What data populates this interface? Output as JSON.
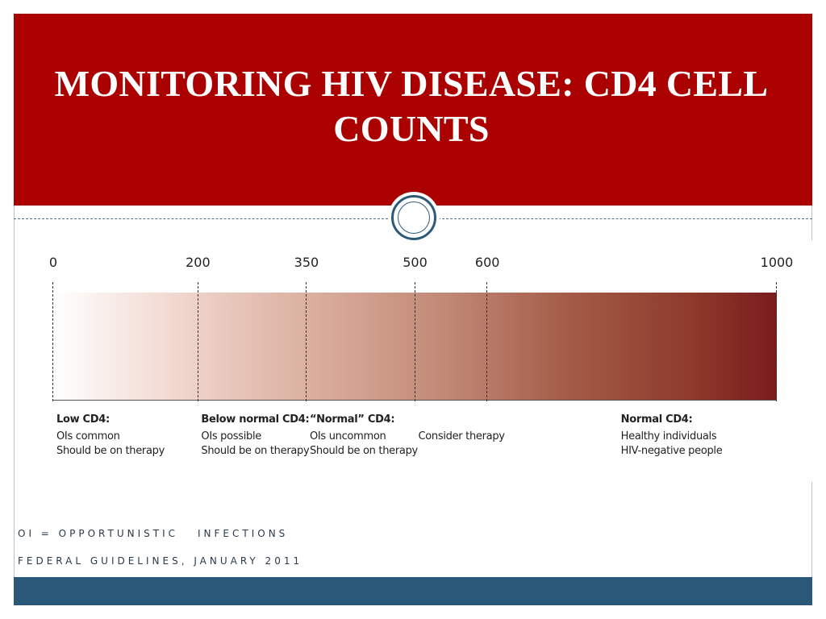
{
  "slide": {
    "title": "MONITORING HIV DISEASE:  CD4 CELL COUNTS",
    "colors": {
      "header": "#ab0000",
      "footer": "#2a5878",
      "bar_start": "#ffffff",
      "bar_end": "#7a1c1c"
    }
  },
  "scale": {
    "ticks": [
      {
        "value": 0,
        "label": "0"
      },
      {
        "value": 200,
        "label": "200"
      },
      {
        "value": 350,
        "label": "350"
      },
      {
        "value": 500,
        "label": "500"
      },
      {
        "value": 600,
        "label": "600"
      },
      {
        "value": 1000,
        "label": "1000"
      }
    ],
    "range": [
      0,
      1000
    ]
  },
  "zones": [
    {
      "start": 0,
      "heading": "Low CD4:",
      "lines": [
        "OIs common",
        "Should be on therapy"
      ]
    },
    {
      "start": 200,
      "heading": "Below normal CD4:",
      "lines": [
        "OIs possible",
        "Should be on therapy"
      ]
    },
    {
      "start": 350,
      "heading": "“Normal” CD4:",
      "lines": [
        "OIs uncommon",
        "Should be on therapy"
      ]
    },
    {
      "start": 500,
      "heading": "",
      "lines": [
        "Consider therapy"
      ]
    },
    {
      "start": 780,
      "heading": "Normal CD4:",
      "lines": [
        "Healthy individuals",
        "HIV-negative people"
      ]
    }
  ],
  "footnotes": {
    "oi_left": "OI = OPPORTUNISTIC",
    "oi_right": "INFECTIONS",
    "guidelines": "FEDERAL GUIDELINES, JANUARY 2011"
  }
}
